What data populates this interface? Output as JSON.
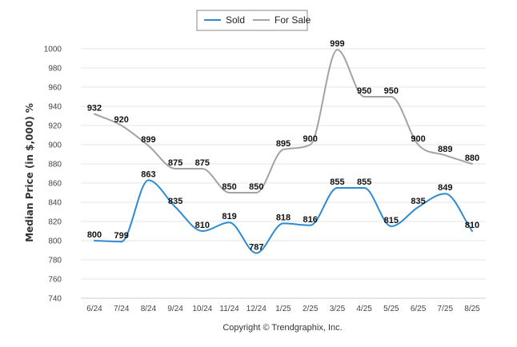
{
  "footer": {
    "copyright": "Copyright © Trendgraphix, Inc."
  },
  "chart_data": {
    "type": "line",
    "ylabel": "Median Price (in $,000) %",
    "xlabel": "",
    "ylim": [
      740,
      1000
    ],
    "ytick_step": 20,
    "grid": true,
    "legend_position": "top-center",
    "categories": [
      "6/24",
      "7/24",
      "8/24",
      "9/24",
      "10/24",
      "11/24",
      "12/24",
      "1/25",
      "2/25",
      "3/25",
      "4/25",
      "5/25",
      "6/25",
      "7/25",
      "8/25"
    ],
    "series": [
      {
        "name": "Sold",
        "color": "#2e8bd0",
        "values": [
          800,
          799,
          863,
          835,
          810,
          819,
          787,
          818,
          816,
          855,
          855,
          815,
          835,
          849,
          810
        ]
      },
      {
        "name": "For Sale",
        "color": "#a3a3a3",
        "values": [
          932,
          920,
          899,
          875,
          875,
          850,
          850,
          895,
          900,
          999,
          950,
          950,
          900,
          889,
          880
        ]
      }
    ]
  }
}
